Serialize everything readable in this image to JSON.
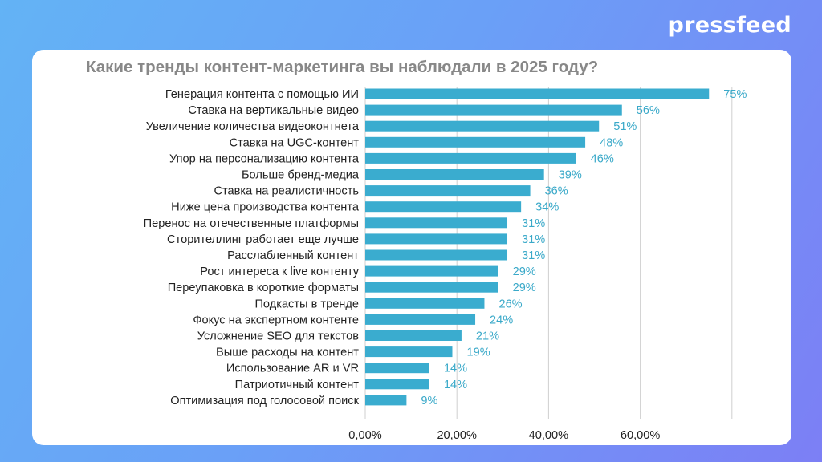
{
  "brand": {
    "name": "pressfeed"
  },
  "chart_data": {
    "type": "bar",
    "orientation": "horizontal",
    "title": "Какие тренды контент-маркетинга вы наблюдали в 2025 году?",
    "xlabel": "",
    "ylabel": "",
    "xlim": [
      0,
      0.8
    ],
    "grid": true,
    "legend": "none",
    "bar_color": "#3aaccf",
    "value_label_color": "#3aa9c9",
    "x_ticks": [
      {
        "value": 0,
        "label": "0,00%"
      },
      {
        "value": 0.2,
        "label": "20,00%"
      },
      {
        "value": 0.4,
        "label": "40,00%"
      },
      {
        "value": 0.6,
        "label": "60,00%"
      }
    ],
    "categories": [
      "Генерация контента с помощью ИИ",
      "Ставка на вертикальные видео",
      "Увеличение количества видеоконтнета",
      "Ставка на UGC-контент",
      "Упор на персонализацию контента",
      "Больше бренд-медиа",
      "Ставка на реалистичность",
      "Ниже цена производства контента",
      "Перенос на отечественные платформы",
      "Сторителлинг работает еще лучше",
      "Расслабленный контент",
      "Рост интереса к live контенту",
      "Переупаковка в короткие форматы",
      "Подкасты в тренде",
      "Фокус на экспертном контенте",
      "Усложнение SEO для текстов",
      "Выше расходы на контент",
      "Использование AR и VR",
      "Патриотичный контент",
      "Оптимизация под голосовой поиск"
    ],
    "values": [
      0.75,
      0.56,
      0.51,
      0.48,
      0.46,
      0.39,
      0.36,
      0.34,
      0.31,
      0.31,
      0.31,
      0.29,
      0.29,
      0.26,
      0.24,
      0.21,
      0.19,
      0.14,
      0.14,
      0.09
    ],
    "value_labels": [
      "75%",
      "56%",
      "51%",
      "48%",
      "46%",
      "39%",
      "36%",
      "34%",
      "31%",
      "31%",
      "31%",
      "29%",
      "29%",
      "26%",
      "24%",
      "21%",
      "19%",
      "14%",
      "14%",
      "9%"
    ]
  }
}
